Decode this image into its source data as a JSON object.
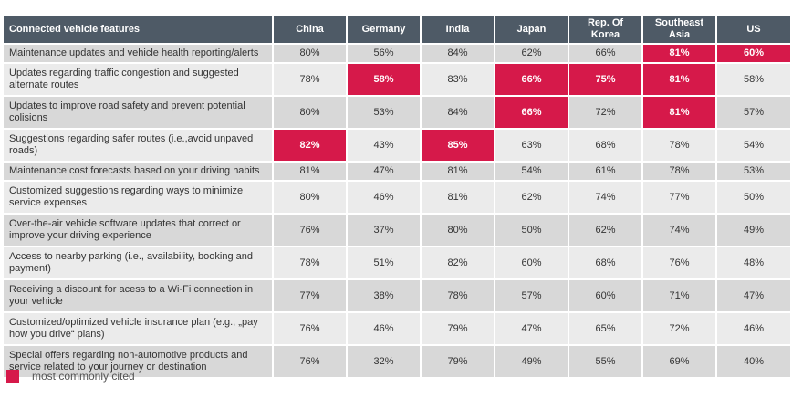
{
  "chart_data": {
    "type": "table",
    "header": [
      "Connected vehicle features",
      "China",
      "Germany",
      "India",
      "Japan",
      "Rep. Of Korea",
      "Southeast Asia",
      "US"
    ],
    "rows": [
      {
        "feature": "Maintenance updates and vehicle health reporting/alerts",
        "values": [
          "80%",
          "56%",
          "84%",
          "62%",
          "66%",
          "81%",
          "60%"
        ],
        "highlight": [
          false,
          false,
          false,
          false,
          false,
          true,
          true
        ]
      },
      {
        "feature": "Updates regarding traffic congestion and suggested alternate routes",
        "values": [
          "78%",
          "58%",
          "83%",
          "66%",
          "75%",
          "81%",
          "58%"
        ],
        "highlight": [
          false,
          true,
          false,
          true,
          true,
          true,
          false
        ]
      },
      {
        "feature": "Updates to improve road safety and prevent potential colisions",
        "values": [
          "80%",
          "53%",
          "84%",
          "66%",
          "72%",
          "81%",
          "57%"
        ],
        "highlight": [
          false,
          false,
          false,
          true,
          false,
          true,
          false
        ]
      },
      {
        "feature": "Suggestions regarding safer routes (i.e.,avoid unpaved roads)",
        "values": [
          "82%",
          "43%",
          "85%",
          "63%",
          "68%",
          "78%",
          "54%"
        ],
        "highlight": [
          true,
          false,
          true,
          false,
          false,
          false,
          false
        ]
      },
      {
        "feature": "Maintenance cost forecasts based on your driving habits",
        "values": [
          "81%",
          "47%",
          "81%",
          "54%",
          "61%",
          "78%",
          "53%"
        ],
        "highlight": [
          false,
          false,
          false,
          false,
          false,
          false,
          false
        ]
      },
      {
        "feature": "Customized suggestions regarding ways to minimize service expenses",
        "values": [
          "80%",
          "46%",
          "81%",
          "62%",
          "74%",
          "77%",
          "50%"
        ],
        "highlight": [
          false,
          false,
          false,
          false,
          false,
          false,
          false
        ]
      },
      {
        "feature": "Over-the-air vehicle software updates that correct or improve your driving experience",
        "values": [
          "76%",
          "37%",
          "80%",
          "50%",
          "62%",
          "74%",
          "49%"
        ],
        "highlight": [
          false,
          false,
          false,
          false,
          false,
          false,
          false
        ]
      },
      {
        "feature": "Access to nearby parking (i.e., availability, booking and payment)",
        "values": [
          "78%",
          "51%",
          "82%",
          "60%",
          "68%",
          "76%",
          "48%"
        ],
        "highlight": [
          false,
          false,
          false,
          false,
          false,
          false,
          false
        ]
      },
      {
        "feature": "Receiving a discount for acess to a Wi-Fi connection in your vehicle",
        "values": [
          "77%",
          "38%",
          "78%",
          "57%",
          "60%",
          "71%",
          "47%"
        ],
        "highlight": [
          false,
          false,
          false,
          false,
          false,
          false,
          false
        ]
      },
      {
        "feature": "Customized/optimized vehicle insurance plan (e.g., „pay how you drive“ plans)",
        "values": [
          "76%",
          "46%",
          "79%",
          "47%",
          "65%",
          "72%",
          "46%"
        ],
        "highlight": [
          false,
          false,
          false,
          false,
          false,
          false,
          false
        ]
      },
      {
        "feature": "Special offers regarding non-automotive products and service related to your journey or destination",
        "values": [
          "76%",
          "32%",
          "79%",
          "49%",
          "55%",
          "69%",
          "40%"
        ],
        "highlight": [
          false,
          false,
          false,
          false,
          false,
          false,
          false
        ]
      }
    ],
    "highlight_color": "#d6194a",
    "legend": "most commonly cited"
  }
}
